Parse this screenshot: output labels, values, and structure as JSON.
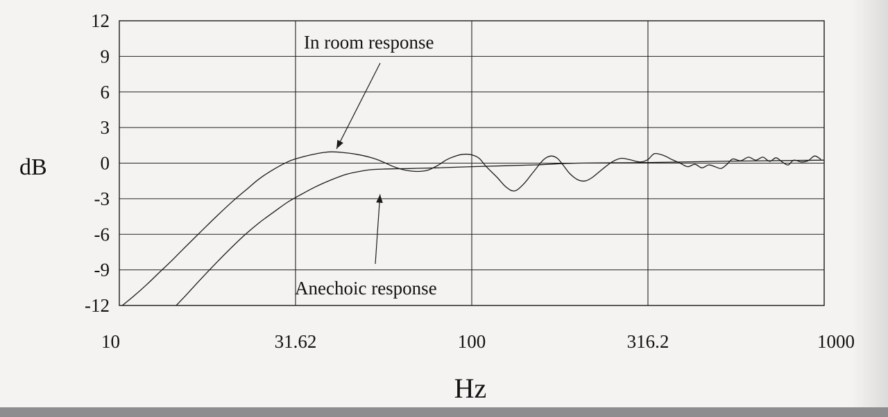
{
  "chart_data": {
    "type": "line",
    "xlabel": "Hz",
    "ylabel": "dB",
    "x_scale": "log",
    "xlim": [
      10,
      1000
    ],
    "ylim": [
      -12,
      12
    ],
    "x_ticks": [
      "10",
      "31.62",
      "100",
      "316.2",
      "1000"
    ],
    "y_ticks": [
      "12",
      "9",
      "6",
      "3",
      "0",
      "-3",
      "-6",
      "-9",
      "-12"
    ],
    "grid": true,
    "series": [
      {
        "name": "In room response",
        "x": [
          10.2,
          11,
          12,
          13,
          14,
          15,
          17,
          19,
          21,
          23,
          25,
          27.5,
          30,
          32,
          35,
          38,
          40,
          43,
          47,
          52,
          56,
          60,
          65,
          70,
          75,
          80,
          85,
          90,
          95,
          100,
          105,
          110,
          118,
          125,
          132,
          140,
          150,
          160,
          168,
          175,
          182,
          190,
          200,
          210,
          220,
          235,
          250,
          265,
          280,
          300,
          316,
          330,
          350,
          370,
          390,
          410,
          430,
          450,
          470,
          490,
          510,
          530,
          550,
          580,
          610,
          640,
          670,
          700,
          730,
          760,
          790,
          820,
          860,
          900,
          940,
          980
        ],
        "y": [
          -12,
          -11.2,
          -10.2,
          -9.2,
          -8.3,
          -7.4,
          -5.8,
          -4.4,
          -3.2,
          -2.2,
          -1.3,
          -0.5,
          0.1,
          0.4,
          0.7,
          0.9,
          0.95,
          0.9,
          0.75,
          0.45,
          0.1,
          -0.3,
          -0.6,
          -0.7,
          -0.6,
          -0.2,
          0.3,
          0.6,
          0.75,
          0.7,
          0.4,
          -0.3,
          -1.2,
          -2,
          -2.35,
          -1.8,
          -0.7,
          0.3,
          0.6,
          0.4,
          -0.2,
          -0.9,
          -1.4,
          -1.5,
          -1.2,
          -0.5,
          0.1,
          0.4,
          0.3,
          0.1,
          0.3,
          0.8,
          0.65,
          0.3,
          0,
          -0.3,
          -0.1,
          -0.4,
          -0.15,
          -0.3,
          -0.45,
          -0.1,
          0.35,
          0.2,
          0.5,
          0.25,
          0.5,
          0.15,
          0.45,
          0.1,
          -0.15,
          0.25,
          0.1,
          0.2,
          0.6,
          0.3
        ]
      },
      {
        "name": "Anechoic response",
        "x": [
          14.5,
          15.5,
          17,
          19,
          21,
          23,
          25,
          27.5,
          30,
          33,
          36,
          40,
          44,
          48,
          52,
          56,
          60,
          65,
          70,
          80,
          100,
          150,
          200,
          316,
          500,
          1000
        ],
        "y": [
          -12,
          -11.1,
          -9.8,
          -8.3,
          -7,
          -5.9,
          -5,
          -4.1,
          -3.3,
          -2.6,
          -2,
          -1.4,
          -0.95,
          -0.7,
          -0.55,
          -0.5,
          -0.48,
          -0.46,
          -0.44,
          -0.4,
          -0.3,
          -0.15,
          0,
          0.05,
          0.15,
          0.25
        ]
      }
    ],
    "annotations": [
      {
        "text": "In room response",
        "target_x": 41,
        "target_y": 1.0
      },
      {
        "text": "Anechoic response",
        "target_x": 55,
        "target_y": -2.4
      }
    ]
  }
}
